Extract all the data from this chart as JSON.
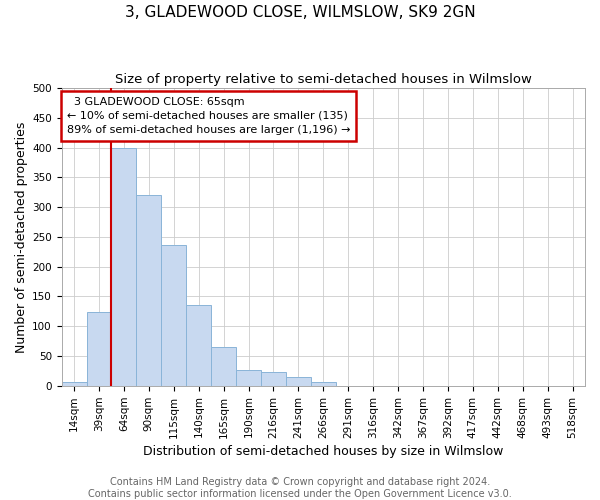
{
  "title": "3, GLADEWOOD CLOSE, WILMSLOW, SK9 2GN",
  "subtitle": "Size of property relative to semi-detached houses in Wilmslow",
  "xlabel": "Distribution of semi-detached houses by size in Wilmslow",
  "ylabel": "Number of semi-detached properties",
  "footer_line1": "Contains HM Land Registry data © Crown copyright and database right 2024.",
  "footer_line2": "Contains public sector information licensed under the Open Government Licence v3.0.",
  "categories": [
    "14sqm",
    "39sqm",
    "64sqm",
    "90sqm",
    "115sqm",
    "140sqm",
    "165sqm",
    "190sqm",
    "216sqm",
    "241sqm",
    "266sqm",
    "291sqm",
    "316sqm",
    "342sqm",
    "367sqm",
    "392sqm",
    "417sqm",
    "442sqm",
    "468sqm",
    "493sqm",
    "518sqm"
  ],
  "values": [
    6,
    123,
    400,
    320,
    237,
    135,
    65,
    26,
    23,
    14,
    6,
    0,
    0,
    0,
    0,
    0,
    0,
    0,
    0,
    0,
    0
  ],
  "bar_color": "#c8d9f0",
  "bar_edge_color": "#8ab4d8",
  "bar_width": 1.0,
  "property_label": "3 GLADEWOOD CLOSE: 65sqm",
  "smaller_pct": "10%",
  "smaller_count": 135,
  "larger_pct": "89%",
  "larger_count": 1196,
  "property_bar_index": 2,
  "annotation_box_color": "#ffffff",
  "annotation_box_edge_color": "#cc0000",
  "vertical_line_color": "#cc0000",
  "ylim": [
    0,
    500
  ],
  "yticks": [
    0,
    50,
    100,
    150,
    200,
    250,
    300,
    350,
    400,
    450,
    500
  ],
  "background_color": "#ffffff",
  "grid_color": "#cccccc",
  "title_fontsize": 11,
  "subtitle_fontsize": 9.5,
  "axis_label_fontsize": 9,
  "tick_fontsize": 7.5,
  "annotation_fontsize": 8,
  "footer_fontsize": 7
}
